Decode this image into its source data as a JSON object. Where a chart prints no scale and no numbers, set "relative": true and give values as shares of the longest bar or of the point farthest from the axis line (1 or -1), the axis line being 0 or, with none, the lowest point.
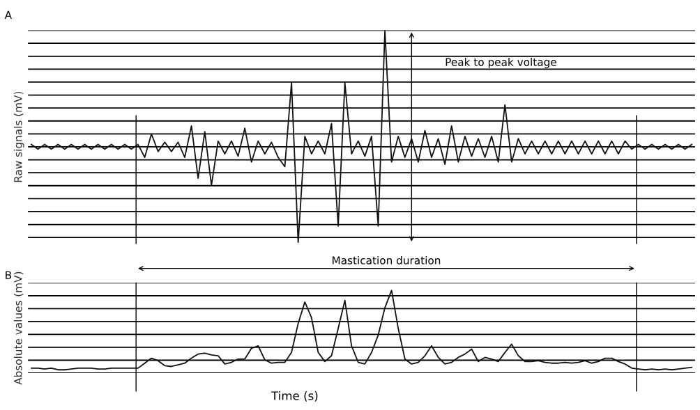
{
  "chart_data": [
    {
      "type": "line",
      "title": "A",
      "ylabel": "Raw signals (mV)",
      "relative": true,
      "grid": "y",
      "categories": [
        null,
        null,
        null,
        null,
        null,
        null,
        null,
        null,
        null,
        null,
        null,
        null,
        null,
        null,
        null,
        null,
        null,
        null,
        null,
        null,
        null,
        null,
        null,
        null,
        null,
        null,
        null,
        null,
        null,
        null,
        null,
        null,
        null,
        null,
        null,
        null,
        null,
        null,
        null,
        null,
        null,
        null,
        null,
        null,
        null,
        null,
        null,
        null,
        null,
        null,
        null,
        null,
        null,
        null,
        null,
        null,
        null,
        null,
        null,
        null,
        null,
        null,
        null,
        null,
        null,
        null,
        null,
        null,
        null,
        null,
        null,
        null,
        null,
        null,
        null,
        null,
        null,
        null,
        null,
        null,
        null,
        null,
        null,
        null,
        null,
        null,
        null,
        null,
        null,
        null,
        null,
        null,
        null,
        null,
        null,
        null,
        null,
        null,
        null,
        null
      ],
      "series": [
        {
          "color": "#111111",
          "values": [
            0.02,
            -0.02,
            0.02,
            -0.02,
            0.02,
            -0.02,
            0.02,
            -0.02,
            0.02,
            -0.02,
            0.02,
            -0.02,
            0.02,
            -0.02,
            0.02,
            -0.02,
            0.02,
            -0.09,
            0.11,
            -0.04,
            0.04,
            -0.04,
            0.04,
            -0.09,
            0.18,
            -0.27,
            0.13,
            -0.33,
            0.05,
            -0.06,
            0.05,
            -0.08,
            0.16,
            -0.13,
            0.05,
            -0.06,
            0.04,
            -0.09,
            -0.17,
            0.55,
            -0.82,
            0.09,
            -0.06,
            0.05,
            -0.06,
            0.2,
            -0.68,
            0.55,
            -0.06,
            0.05,
            -0.08,
            0.09,
            -0.68,
            1.0,
            -0.13,
            0.09,
            -0.09,
            0.07,
            -0.13,
            0.14,
            -0.09,
            0.07,
            -0.15,
            0.18,
            -0.13,
            0.09,
            -0.08,
            0.07,
            -0.09,
            0.09,
            -0.13,
            0.36,
            -0.13,
            0.07,
            -0.06,
            0.05,
            -0.06,
            0.05,
            -0.06,
            0.05,
            -0.06,
            0.05,
            -0.06,
            0.05,
            -0.06,
            0.05,
            -0.06,
            0.05,
            -0.06,
            0.05,
            -0.02,
            0.02,
            -0.02,
            0.02,
            -0.02,
            0.02,
            -0.02,
            0.02,
            -0.02,
            0.02
          ]
        }
      ],
      "annotations": [
        "Peak to peak voltage"
      ]
    },
    {
      "type": "line",
      "title": "B",
      "ylabel": "Absolute values (mV)",
      "xlabel": "Time (s)",
      "relative": true,
      "grid": "y",
      "categories": [
        null,
        null,
        null,
        null,
        null,
        null,
        null,
        null,
        null,
        null,
        null,
        null,
        null,
        null,
        null,
        null,
        null,
        null,
        null,
        null,
        null,
        null,
        null,
        null,
        null,
        null,
        null,
        null,
        null,
        null,
        null,
        null,
        null,
        null,
        null,
        null,
        null,
        null,
        null,
        null,
        null,
        null,
        null,
        null,
        null,
        null,
        null,
        null,
        null,
        null,
        null,
        null,
        null,
        null,
        null,
        null,
        null,
        null,
        null,
        null,
        null,
        null,
        null,
        null,
        null,
        null,
        null,
        null,
        null,
        null,
        null,
        null,
        null,
        null,
        null,
        null,
        null,
        null,
        null,
        null,
        null,
        null,
        null,
        null,
        null,
        null,
        null,
        null,
        null,
        null,
        null,
        null,
        null,
        null,
        null,
        null,
        null,
        null,
        null,
        null
      ],
      "series": [
        {
          "color": "#111111",
          "values": [
            0.06,
            0.06,
            0.05,
            0.06,
            0.04,
            0.04,
            0.05,
            0.06,
            0.06,
            0.06,
            0.05,
            0.05,
            0.06,
            0.06,
            0.06,
            0.06,
            0.06,
            0.12,
            0.18,
            0.15,
            0.09,
            0.08,
            0.1,
            0.12,
            0.18,
            0.23,
            0.24,
            0.22,
            0.21,
            0.11,
            0.13,
            0.17,
            0.17,
            0.3,
            0.33,
            0.16,
            0.12,
            0.13,
            0.13,
            0.25,
            0.6,
            0.86,
            0.67,
            0.25,
            0.14,
            0.21,
            0.54,
            0.88,
            0.33,
            0.13,
            0.11,
            0.25,
            0.46,
            0.79,
            1.0,
            0.54,
            0.17,
            0.11,
            0.13,
            0.21,
            0.33,
            0.19,
            0.11,
            0.13,
            0.19,
            0.23,
            0.29,
            0.14,
            0.19,
            0.17,
            0.14,
            0.25,
            0.35,
            0.21,
            0.14,
            0.14,
            0.15,
            0.13,
            0.12,
            0.12,
            0.13,
            0.12,
            0.13,
            0.15,
            0.12,
            0.14,
            0.18,
            0.18,
            0.14,
            0.11,
            0.06,
            0.05,
            0.04,
            0.05,
            0.04,
            0.05,
            0.04,
            0.05,
            0.06,
            0.07
          ]
        }
      ],
      "annotations": [
        "Mastication duration"
      ]
    }
  ]
}
